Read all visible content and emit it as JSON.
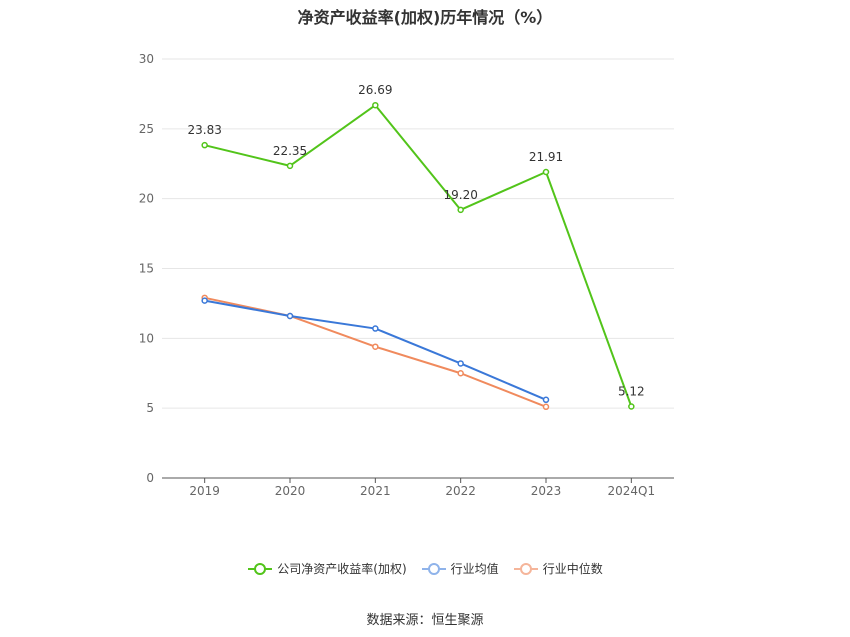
{
  "title": "净资产收益率(加权)历年情况（%）",
  "source": "数据来源：恒生聚源",
  "chart_data": {
    "type": "line",
    "title": "净资产收益率(加权)历年情况（%）",
    "categories": [
      "2019",
      "2020",
      "2021",
      "2022",
      "2023",
      "2024Q1"
    ],
    "ylim": [
      0,
      30
    ],
    "yticks": [
      0,
      5,
      10,
      15,
      20,
      25,
      30
    ],
    "grid": true,
    "legend_position": "bottom",
    "series": [
      {
        "name": "公司净资产收益率(加权)",
        "color": "#52c41a",
        "values": [
          23.83,
          22.35,
          26.69,
          19.2,
          21.91,
          5.12
        ],
        "labels": [
          "23.83",
          "22.35",
          "26.69",
          "19.20",
          "21.91",
          "5.12"
        ]
      },
      {
        "name": "行业均值",
        "color": "#3a78d8",
        "values": [
          12.7,
          11.6,
          10.7,
          8.2,
          5.6,
          null
        ]
      },
      {
        "name": "行业中位数",
        "color": "#f08a5d",
        "values": [
          12.9,
          11.6,
          9.4,
          7.5,
          5.1,
          null
        ]
      }
    ]
  }
}
